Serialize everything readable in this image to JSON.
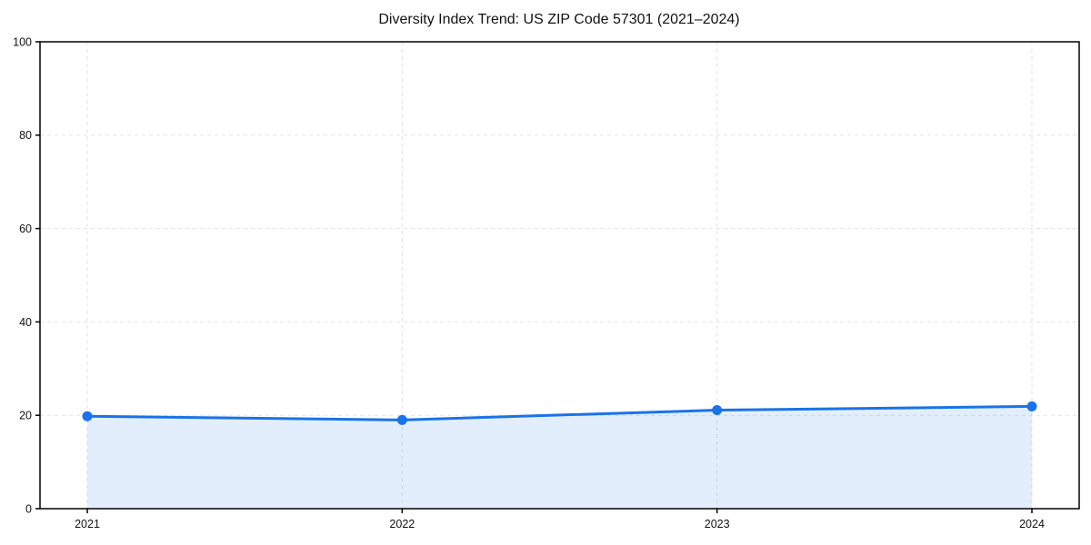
{
  "chart_data": {
    "type": "line",
    "title": "Diversity Index Trend: US ZIP Code 57301 (2021–2024)",
    "categories": [
      "2021",
      "2022",
      "2023",
      "2024"
    ],
    "series": [
      {
        "name": "Diversity Index",
        "values": [
          19.8,
          19.0,
          21.1,
          21.9
        ]
      }
    ],
    "xlabel": "",
    "ylabel": "",
    "ylim": [
      0,
      100
    ],
    "yticks": [
      0,
      20,
      40,
      60,
      80,
      100
    ],
    "grid": "dashed-both-axes",
    "legend_position": "none",
    "area_fill": true,
    "marker": "circle",
    "line_color": "#1a73e8",
    "fill_color": "rgba(26,115,232,0.12)",
    "grid_color": "#e2e2e2",
    "axis_color": "#000000",
    "text_color": "#111111",
    "background_color": "#ffffff"
  }
}
